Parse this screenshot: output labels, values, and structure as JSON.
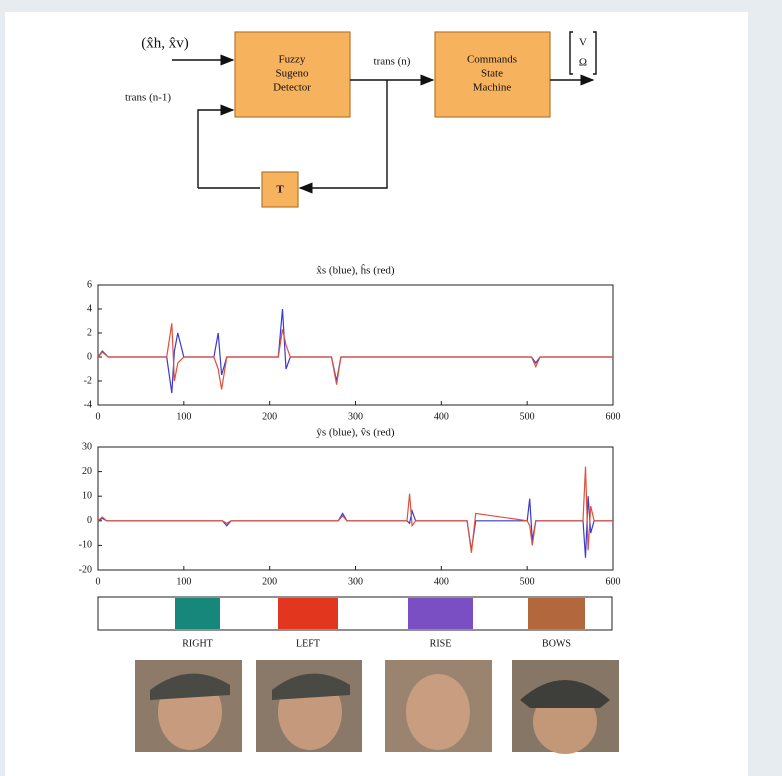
{
  "diagram": {
    "input_label": "(x̂h, x̂v)",
    "feedback_label": "trans (n-1)",
    "detector_lines": [
      "Fuzzy",
      "Sugeno",
      "Detector"
    ],
    "trans_label": "trans (n)",
    "machine_lines": [
      "Commands",
      "State",
      "Machine"
    ],
    "delay_label": "T",
    "output_lines": [
      "V",
      "Ω"
    ]
  },
  "chart_data": [
    {
      "type": "line",
      "title": "x̂s (blue), ĥs (red)",
      "x": [
        0,
        5,
        12,
        80,
        86,
        89,
        93,
        100,
        135,
        140,
        144,
        150,
        210,
        215,
        219,
        224,
        272,
        278,
        283,
        290,
        505,
        510,
        515,
        600
      ],
      "series": [
        {
          "color": "#3a3ad0",
          "values": [
            0,
            0.5,
            0,
            0,
            -3,
            0.5,
            2,
            0,
            0,
            2,
            -1.5,
            0,
            0,
            4,
            -1,
            0,
            0,
            -2,
            0,
            0,
            0,
            -0.5,
            0,
            0
          ]
        },
        {
          "color": "#e0503a",
          "values": [
            0,
            0.4,
            0,
            0,
            2.8,
            -2,
            -0.5,
            0,
            0,
            -1,
            -2.7,
            0,
            0,
            2.3,
            1,
            0,
            0,
            -2.3,
            0,
            0,
            0,
            -0.8,
            0,
            0
          ]
        }
      ],
      "xlim": [
        0,
        600
      ],
      "xticks": [
        0,
        100,
        200,
        300,
        400,
        500,
        600
      ],
      "ylim": [
        -4,
        6
      ],
      "yticks": [
        -4,
        -2,
        0,
        2,
        4,
        6
      ]
    },
    {
      "type": "line",
      "title": "ŷs (blue), v̂s (red)",
      "x": [
        0,
        5,
        10,
        145,
        150,
        155,
        280,
        285,
        290,
        360,
        363,
        366,
        370,
        430,
        435,
        440,
        500,
        503,
        506,
        510,
        565,
        568,
        571,
        574,
        578,
        600
      ],
      "series": [
        {
          "color": "#3a3ad0",
          "values": [
            0,
            1,
            0,
            0,
            -2,
            0,
            0,
            3,
            0,
            0,
            -1,
            4,
            0,
            0,
            -12,
            0,
            0,
            9,
            -8,
            0,
            0,
            -15,
            10,
            -5,
            0,
            0
          ]
        },
        {
          "color": "#e0503a",
          "values": [
            0,
            1.5,
            0,
            0,
            -1,
            0,
            0,
            2,
            0,
            0,
            11,
            -2,
            0,
            0,
            -13,
            3,
            0,
            -2,
            -10,
            0,
            0,
            22,
            -12,
            6,
            0,
            0
          ]
        }
      ],
      "xlim": [
        0,
        600
      ],
      "xticks": [
        0,
        100,
        200,
        300,
        400,
        500,
        600
      ],
      "ylim": [
        -20,
        30
      ],
      "yticks": [
        -20,
        -10,
        0,
        10,
        20,
        30
      ]
    }
  ],
  "legend_bar": [
    {
      "label": "RIGHT",
      "color": "#16877a"
    },
    {
      "label": "LEFT",
      "color": "#e2361f"
    },
    {
      "label": "RISE",
      "color": "#7b4fc4"
    },
    {
      "label": "BOWS",
      "color": "#b2673c"
    }
  ]
}
